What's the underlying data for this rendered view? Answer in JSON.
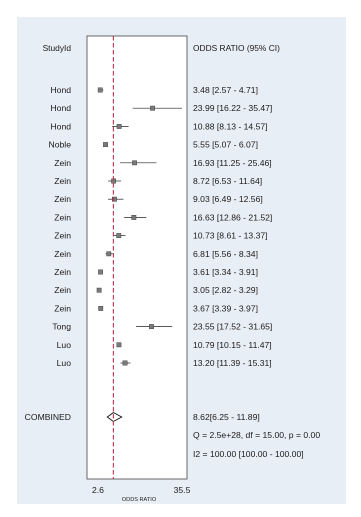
{
  "chart_data": {
    "type": "forest",
    "study_header": "StudyId",
    "ci_header": "ODDS RATIO (95% CI)",
    "xlabel": "ODDS RATIO",
    "xticks": [
      "2.6",
      "35.5"
    ],
    "xlim": [
      2.6,
      35.5
    ],
    "reference_line": 8.62,
    "studies": [
      {
        "name": "Hond",
        "or": 3.48,
        "lo": 2.57,
        "hi": 4.71,
        "label": "3.48 [2.57 - 4.71]"
      },
      {
        "name": "Hond",
        "or": 23.99,
        "lo": 16.22,
        "hi": 35.47,
        "label": "23.99 [16.22 - 35.47]"
      },
      {
        "name": "Hond",
        "or": 10.88,
        "lo": 8.13,
        "hi": 14.57,
        "label": "10.88 [8.13 - 14.57]"
      },
      {
        "name": "Noble",
        "or": 5.55,
        "lo": 5.07,
        "hi": 6.07,
        "label": "5.55 [5.07 - 6.07]"
      },
      {
        "name": "Zein",
        "or": 16.93,
        "lo": 11.25,
        "hi": 25.46,
        "label": "16.93 [11.25 - 25.46]"
      },
      {
        "name": "Zein",
        "or": 8.72,
        "lo": 6.53,
        "hi": 11.64,
        "label": "8.72 [6.53 - 11.64]"
      },
      {
        "name": "Zein",
        "or": 9.03,
        "lo": 6.49,
        "hi": 12.56,
        "label": "9.03 [6.49 - 12.56]"
      },
      {
        "name": "Zein",
        "or": 16.63,
        "lo": 12.86,
        "hi": 21.52,
        "label": "16.63 [12.86 - 21.52]"
      },
      {
        "name": "Zein",
        "or": 10.73,
        "lo": 8.61,
        "hi": 13.37,
        "label": "10.73 [8.61 - 13.37]"
      },
      {
        "name": "Zein",
        "or": 6.81,
        "lo": 5.56,
        "hi": 8.34,
        "label": "6.81 [5.56 - 8.34]"
      },
      {
        "name": "Zein",
        "or": 3.61,
        "lo": 3.34,
        "hi": 3.91,
        "label": "3.61 [3.34 - 3.91]"
      },
      {
        "name": "Zein",
        "or": 3.05,
        "lo": 2.82,
        "hi": 3.29,
        "label": "3.05 [2.82 - 3.29]"
      },
      {
        "name": "Zein",
        "or": 3.67,
        "lo": 3.39,
        "hi": 3.97,
        "label": "3.67 [3.39 - 3.97]"
      },
      {
        "name": "Tong",
        "or": 23.55,
        "lo": 17.52,
        "hi": 31.65,
        "label": "23.55 [17.52 - 31.65]"
      },
      {
        "name": "Luo",
        "or": 10.79,
        "lo": 10.15,
        "hi": 11.47,
        "label": "10.79 [10.15 - 11.47]"
      },
      {
        "name": "Luo",
        "or": 13.2,
        "lo": 11.39,
        "hi": 15.31,
        "label": "13.20 [11.39 - 15.31]"
      }
    ],
    "combined": {
      "name": "COMBINED",
      "or": 8.62,
      "lo": 6.25,
      "hi": 11.89,
      "label": "8.62[6.25 - 11.89]"
    },
    "stats": [
      "Q = 2.5e+28, df = 15.00, p =  0.00",
      "I2 = 100.00 [100.00 - 100.00]"
    ],
    "colors": {
      "reference_line": "#b8324a",
      "marker": "#7a7a7a",
      "ci_line": "#222222",
      "panel_bg": "#e8eef5",
      "plot_bg": "#ffffff"
    }
  }
}
